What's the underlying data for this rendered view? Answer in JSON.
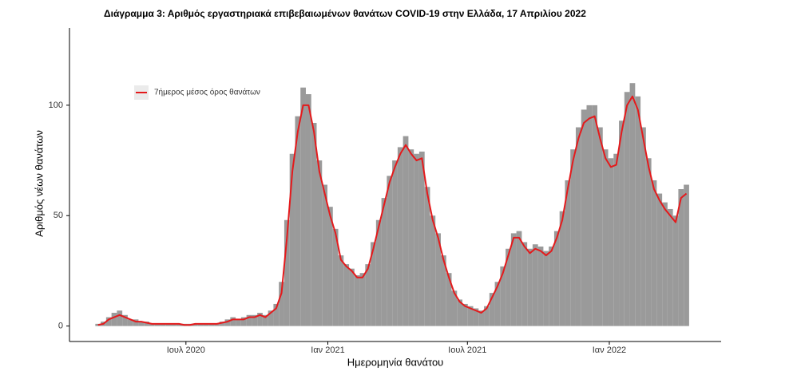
{
  "chart_data": {
    "type": "bar-line",
    "title": "Διάγραμμα 3: Αριθμός εργαστηριακά επιβεβαιωμένων θανάτων COVID-19 στην Ελλάδα, 17 Απριλίου 2022",
    "x_label": "Ημερομηνία θανάτου",
    "y_label": "Αριθμός νέων θανάτων",
    "x": [
      "2020-03-09",
      "2020-03-16",
      "2020-03-23",
      "2020-03-30",
      "2020-04-06",
      "2020-04-13",
      "2020-04-20",
      "2020-04-27",
      "2020-05-04",
      "2020-05-11",
      "2020-05-18",
      "2020-05-25",
      "2020-06-01",
      "2020-06-08",
      "2020-06-15",
      "2020-06-22",
      "2020-06-29",
      "2020-07-06",
      "2020-07-13",
      "2020-07-20",
      "2020-07-27",
      "2020-08-03",
      "2020-08-10",
      "2020-08-17",
      "2020-08-24",
      "2020-08-31",
      "2020-09-07",
      "2020-09-14",
      "2020-09-21",
      "2020-09-28",
      "2020-10-05",
      "2020-10-12",
      "2020-10-19",
      "2020-10-26",
      "2020-11-02",
      "2020-11-09",
      "2020-11-16",
      "2020-11-23",
      "2020-11-30",
      "2020-12-07",
      "2020-12-14",
      "2020-12-21",
      "2020-12-28",
      "2021-01-04",
      "2021-01-11",
      "2021-01-18",
      "2021-01-25",
      "2021-02-01",
      "2021-02-08",
      "2021-02-15",
      "2021-02-22",
      "2021-03-01",
      "2021-03-08",
      "2021-03-15",
      "2021-03-22",
      "2021-03-29",
      "2021-04-05",
      "2021-04-12",
      "2021-04-19",
      "2021-04-26",
      "2021-05-03",
      "2021-05-10",
      "2021-05-17",
      "2021-05-24",
      "2021-05-31",
      "2021-06-07",
      "2021-06-14",
      "2021-06-21",
      "2021-06-28",
      "2021-07-05",
      "2021-07-12",
      "2021-07-19",
      "2021-07-26",
      "2021-08-02",
      "2021-08-09",
      "2021-08-16",
      "2021-08-23",
      "2021-08-30",
      "2021-09-06",
      "2021-09-13",
      "2021-09-20",
      "2021-09-27",
      "2021-10-04",
      "2021-10-11",
      "2021-10-18",
      "2021-10-25",
      "2021-11-01",
      "2021-11-08",
      "2021-11-15",
      "2021-11-22",
      "2021-11-29",
      "2021-12-06",
      "2021-12-13",
      "2021-12-20",
      "2021-12-27",
      "2022-01-03",
      "2022-01-10",
      "2022-01-17",
      "2022-01-24",
      "2022-01-31",
      "2022-02-07",
      "2022-02-14",
      "2022-02-21",
      "2022-02-28",
      "2022-03-07",
      "2022-03-14",
      "2022-03-21",
      "2022-03-28",
      "2022-04-04",
      "2022-04-11"
    ],
    "series": [
      {
        "color": "#9a9a9a",
        "values": [
          1,
          2,
          4,
          6,
          7,
          5,
          3,
          3,
          2,
          2,
          1,
          1,
          1,
          1,
          1,
          1,
          1,
          1,
          1,
          1,
          1,
          1,
          1,
          2,
          3,
          4,
          3,
          4,
          5,
          5,
          6,
          5,
          7,
          10,
          20,
          48,
          78,
          95,
          108,
          105,
          92,
          75,
          64,
          54,
          44,
          32,
          28,
          26,
          23,
          24,
          28,
          38,
          48,
          58,
          68,
          75,
          81,
          86,
          80,
          78,
          79,
          63,
          50,
          42,
          32,
          24,
          16,
          12,
          10,
          9,
          8,
          7,
          9,
          15,
          20,
          27,
          35,
          42,
          43,
          38,
          35,
          37,
          36,
          34,
          36,
          43,
          52,
          66,
          80,
          90,
          98,
          100,
          100,
          90,
          80,
          76,
          78,
          93,
          106,
          110,
          104,
          90,
          76,
          66,
          60,
          56,
          53,
          50,
          62,
          64
        ]
      },
      {
        "name": "7ήμερος μέσος όρος θανάτων",
        "color": "#e41a1c",
        "values": [
          0.5,
          1,
          3,
          4,
          5,
          4,
          3,
          2,
          2,
          1.5,
          1,
          1,
          1,
          1,
          1,
          1,
          0.5,
          0.5,
          1,
          1,
          1,
          1,
          1,
          1.5,
          2,
          3,
          3,
          3,
          4,
          4,
          5,
          4,
          6,
          8,
          15,
          40,
          70,
          88,
          100,
          100,
          88,
          70,
          60,
          50,
          42,
          30,
          27,
          25,
          22,
          22,
          26,
          35,
          45,
          55,
          65,
          72,
          78,
          82,
          78,
          75,
          76,
          60,
          48,
          40,
          30,
          22,
          15,
          11,
          9,
          8,
          7,
          6,
          8,
          13,
          18,
          24,
          32,
          40,
          40,
          36,
          33,
          35,
          34,
          32,
          34,
          40,
          48,
          62,
          75,
          85,
          92,
          94,
          95,
          85,
          76,
          72,
          73,
          88,
          100,
          104,
          98,
          85,
          72,
          62,
          57,
          53,
          50,
          47,
          58,
          60
        ]
      }
    ],
    "xlim": [
      "2020-02-01",
      "2022-05-26"
    ],
    "xticks": [
      {
        "value": "2020-07-01",
        "label": "Ιουλ 2020"
      },
      {
        "value": "2021-01-01",
        "label": "Ιαν 2021"
      },
      {
        "value": "2021-07-01",
        "label": "Ιουλ 2021"
      },
      {
        "value": "2022-01-01",
        "label": "Ιαν 2022"
      }
    ],
    "ylim": [
      -7,
      135
    ],
    "yticks": [
      0,
      50,
      100
    ]
  }
}
